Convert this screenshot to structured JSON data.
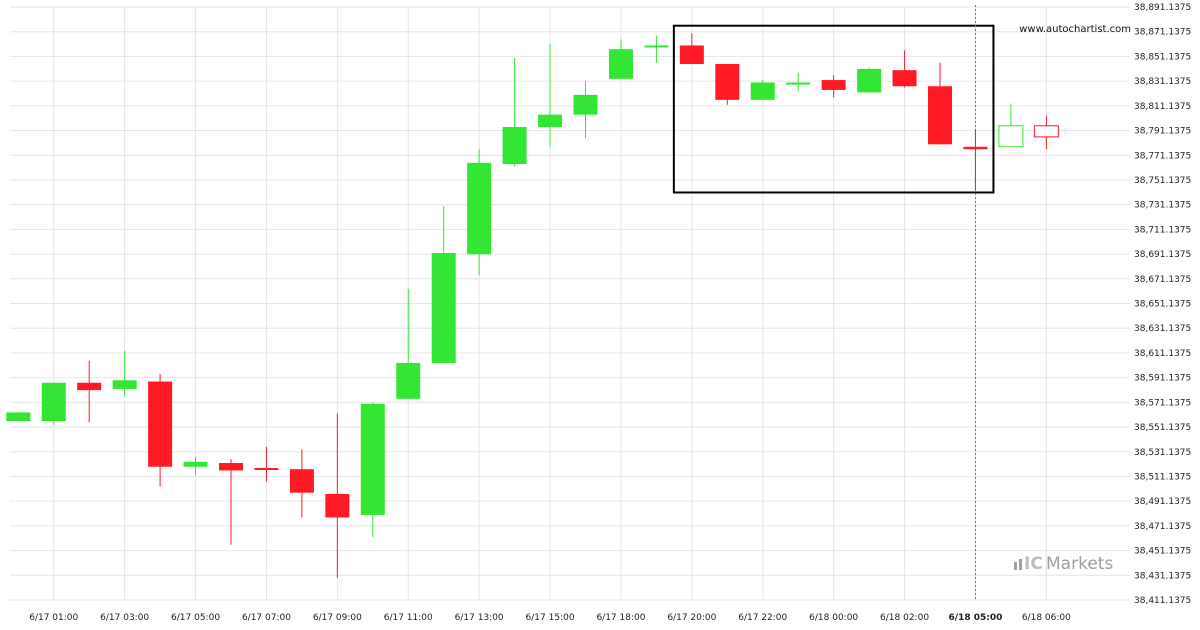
{
  "watermark": "www.autochartist.com",
  "brand": {
    "prefix": "IC",
    "name": "Markets"
  },
  "colors": {
    "up": "#33e633",
    "down": "#ff1a26",
    "grid": "#e6e6e6",
    "axis_text": "#222222",
    "pattern_box": "#000000",
    "brand": "#9aa0a6"
  },
  "chart_data": {
    "type": "candlestick",
    "title": "",
    "ylim": [
      38411.1375,
      38891.1375
    ],
    "y_ticks": [
      "38,411.1375",
      "38,431.1375",
      "38,451.1375",
      "38,471.1375",
      "38,491.1375",
      "38,511.1375",
      "38,531.1375",
      "38,551.1375",
      "38,571.1375",
      "38,591.1375",
      "38,611.1375",
      "38,631.1375",
      "38,651.1375",
      "38,671.1375",
      "38,691.1375",
      "38,711.1375",
      "38,731.1375",
      "38,751.1375",
      "38,771.1375",
      "38,791.1375",
      "38,811.1375",
      "38,831.1375",
      "38,851.1375",
      "38,871.1375",
      "38,891.1375"
    ],
    "x_ticks": [
      {
        "label": "6/17 01:00",
        "index": 1,
        "bold": false
      },
      {
        "label": "6/17 03:00",
        "index": 3,
        "bold": false
      },
      {
        "label": "6/17 05:00",
        "index": 5,
        "bold": false
      },
      {
        "label": "6/17 07:00",
        "index": 7,
        "bold": false
      },
      {
        "label": "6/17 09:00",
        "index": 9,
        "bold": false
      },
      {
        "label": "6/17 11:00",
        "index": 11,
        "bold": false
      },
      {
        "label": "6/17 13:00",
        "index": 13,
        "bold": false
      },
      {
        "label": "6/17 15:00",
        "index": 15,
        "bold": false
      },
      {
        "label": "6/17 18:00",
        "index": 17,
        "bold": false
      },
      {
        "label": "6/17 20:00",
        "index": 19,
        "bold": false
      },
      {
        "label": "6/17 22:00",
        "index": 21,
        "bold": false
      },
      {
        "label": "6/18 00:00",
        "index": 23,
        "bold": false
      },
      {
        "label": "6/18 02:00",
        "index": 25,
        "bold": false
      },
      {
        "label": "6/18 05:00",
        "index": 27,
        "bold": true
      },
      {
        "label": "6/18 06:00",
        "index": 29,
        "bold": false
      }
    ],
    "candles": [
      {
        "o": 38556,
        "h": 38563,
        "l": 38556,
        "c": 38563
      },
      {
        "o": 38556,
        "h": 38587,
        "l": 38553,
        "c": 38587
      },
      {
        "o": 38587,
        "h": 38605,
        "l": 38555,
        "c": 38581
      },
      {
        "o": 38582,
        "h": 38613,
        "l": 38576,
        "c": 38589
      },
      {
        "o": 38588,
        "h": 38594,
        "l": 38503,
        "c": 38519
      },
      {
        "o": 38519,
        "h": 38527,
        "l": 38512,
        "c": 38523
      },
      {
        "o": 38522,
        "h": 38525,
        "l": 38456,
        "c": 38516
      },
      {
        "o": 38518,
        "h": 38535,
        "l": 38507,
        "c": 38517
      },
      {
        "o": 38517,
        "h": 38533,
        "l": 38478,
        "c": 38498
      },
      {
        "o": 38497,
        "h": 38562,
        "l": 38429,
        "c": 38478
      },
      {
        "o": 38480,
        "h": 38571,
        "l": 38462,
        "c": 38570
      },
      {
        "o": 38574,
        "h": 38663,
        "l": 38574,
        "c": 38603
      },
      {
        "o": 38603,
        "h": 38730,
        "l": 38603,
        "c": 38692
      },
      {
        "o": 38691,
        "h": 38776,
        "l": 38674,
        "c": 38765
      },
      {
        "o": 38764,
        "h": 38850,
        "l": 38762,
        "c": 38794
      },
      {
        "o": 38794,
        "h": 38861,
        "l": 38778,
        "c": 38804
      },
      {
        "o": 38804,
        "h": 38831,
        "l": 38785,
        "c": 38820
      },
      {
        "o": 38833,
        "h": 38865,
        "l": 38833,
        "c": 38857
      },
      {
        "o": 38859,
        "h": 38868,
        "l": 38846,
        "c": 38860
      },
      {
        "o": 38860,
        "h": 38870,
        "l": 38847,
        "c": 38845
      },
      {
        "o": 38845,
        "h": 38845,
        "l": 38812,
        "c": 38816
      },
      {
        "o": 38816,
        "h": 38832,
        "l": 38816,
        "c": 38830
      },
      {
        "o": 38830,
        "h": 38838,
        "l": 38823,
        "c": 38830
      },
      {
        "o": 38832,
        "h": 38836,
        "l": 38818,
        "c": 38824
      },
      {
        "o": 38822,
        "h": 38842,
        "l": 38822,
        "c": 38841
      },
      {
        "o": 38840,
        "h": 38856,
        "l": 38826,
        "c": 38827
      },
      {
        "o": 38827,
        "h": 38846,
        "l": 38780,
        "c": 38780
      },
      {
        "o": 38778,
        "h": 38792,
        "l": 38743,
        "c": 38776
      },
      {
        "o": 38778,
        "h": 38813,
        "l": 38778,
        "c": 38795,
        "hollow": true
      },
      {
        "o": 38795,
        "h": 38803,
        "l": 38776,
        "c": 38786,
        "hollow": true
      }
    ],
    "pattern_box": {
      "start_index": 19,
      "end_index": 27,
      "ymin": 38741,
      "ymax": 38876
    },
    "current_marker_index": 27
  }
}
